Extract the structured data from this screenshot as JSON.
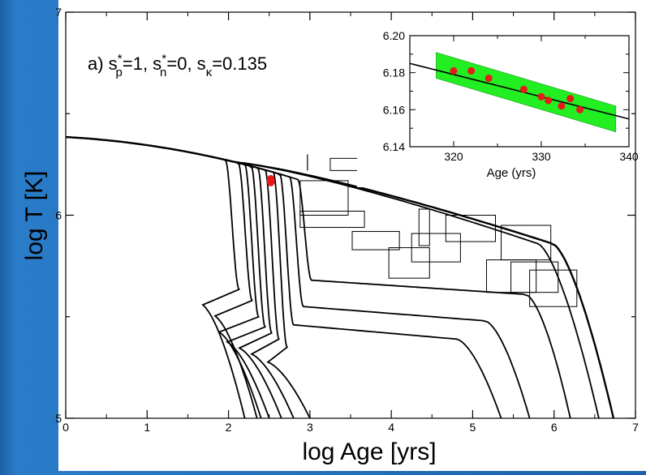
{
  "colors": {
    "background": "#2a7cc8",
    "panel": "#ffffff",
    "axis": "#000000",
    "marker": "#e61a1a",
    "band": "#22ee22"
  },
  "chart_data": [
    {
      "type": "line",
      "annotation": "a) s*p=1, s*n=0, sκ=0.135",
      "xlabel": "log Age [yrs]",
      "ylabel": "log T [K]",
      "xlim": [
        0,
        7
      ],
      "ylim": [
        5,
        7
      ],
      "xticks": [
        0,
        1,
        2,
        3,
        4,
        5,
        6,
        7
      ],
      "yticks": [
        5,
        6,
        7
      ],
      "grid": false,
      "series": [
        {
          "x_drop": 1.96,
          "plateau": 5.635,
          "x_end": 2.2
        },
        {
          "x_drop": 2.12,
          "plateau": 5.58,
          "x_end": 2.35
        },
        {
          "x_drop": 2.2,
          "plateau": 5.5,
          "x_end": 2.4
        },
        {
          "x_drop": 2.28,
          "plateau": 5.45,
          "x_end": 2.5
        },
        {
          "x_drop": 2.36,
          "plateau": 5.42,
          "x_end": 2.65
        },
        {
          "x_drop": 2.45,
          "plateau": 5.39,
          "x_end": 2.8
        },
        {
          "x_drop": 2.55,
          "plateau": 5.35,
          "x_end": 3.0
        },
        {
          "x_drop": 2.63,
          "plateau": 5.46,
          "x_end": 5.35
        },
        {
          "x_drop": 2.75,
          "plateau": 5.55,
          "x_end": 5.7
        },
        {
          "x_drop": 2.85,
          "plateau": 5.68,
          "x_end": 6.2
        },
        {
          "thick": true,
          "x_end": 6.73
        },
        {
          "x_end": 6.55
        }
      ],
      "point": {
        "x": 2.52,
        "y": 6.17
      },
      "tick_mark": {
        "x": 2.97,
        "y1": 6.22,
        "y2": 6.3
      },
      "boxes": [
        {
          "x1": 3.25,
          "x2": 3.64,
          "y1": 6.22,
          "y2": 6.28
        },
        {
          "x1": 2.88,
          "x2": 3.47,
          "y1": 6.0,
          "y2": 6.17
        },
        {
          "x1": 2.88,
          "x2": 3.67,
          "y1": 5.94,
          "y2": 6.02
        },
        {
          "x1": 3.52,
          "x2": 4.1,
          "y1": 5.83,
          "y2": 5.92
        },
        {
          "x1": 3.97,
          "x2": 4.47,
          "y1": 5.69,
          "y2": 5.84
        },
        {
          "x1": 4.25,
          "x2": 4.85,
          "y1": 5.77,
          "y2": 5.91
        },
        {
          "x1": 4.34,
          "x2": 4.47,
          "y1": 5.85,
          "y2": 6.03
        },
        {
          "x1": 4.67,
          "x2": 5.28,
          "y1": 5.87,
          "y2": 6.0
        },
        {
          "x1": 5.35,
          "x2": 5.96,
          "y1": 5.78,
          "y2": 5.95
        },
        {
          "x1": 5.17,
          "x2": 5.78,
          "y1": 5.62,
          "y2": 5.78
        },
        {
          "x1": 5.7,
          "x2": 6.28,
          "y1": 5.55,
          "y2": 5.73
        },
        {
          "x1": 5.47,
          "x2": 6.05,
          "y1": 5.62,
          "y2": 5.77
        }
      ]
    },
    {
      "type": "scatter",
      "xlabel": "Age (yrs)",
      "xlim": [
        315,
        340
      ],
      "ylim": [
        6.14,
        6.2
      ],
      "xticks": [
        320,
        330,
        340
      ],
      "yticks": [
        6.14,
        6.16,
        6.18,
        6.2
      ],
      "points": [
        [
          320,
          6.181
        ],
        [
          322,
          6.181
        ],
        [
          324,
          6.177
        ],
        [
          328,
          6.171
        ],
        [
          330,
          6.167
        ],
        [
          330.8,
          6.165
        ],
        [
          332.3,
          6.162
        ],
        [
          333.3,
          6.166
        ],
        [
          334.4,
          6.16
        ]
      ],
      "fit_line": [
        [
          315,
          6.185
        ],
        [
          340,
          6.155
        ]
      ],
      "band": {
        "x": [
          318,
          338.5
        ],
        "upper": [
          6.191,
          6.162
        ],
        "lower": [
          6.177,
          6.148
        ]
      }
    }
  ]
}
